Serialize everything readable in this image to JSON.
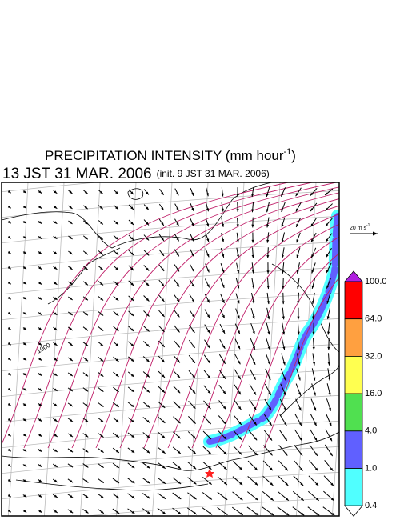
{
  "title": {
    "text": "PRECIPITATION INTENSITY (mm hour",
    "exponent": "-1",
    "close": ")"
  },
  "time": {
    "valid": "13 JST 31 MAR. 2006",
    "init": "(init. 9 JST 31 MAR. 2006)"
  },
  "wind_reference": {
    "text": "20 m s",
    "exponent": "-1"
  },
  "isobar_label": "1000",
  "colorbar": {
    "labels": [
      "100.0",
      "64.0",
      "32.0",
      "16.0",
      "4.0",
      "1.0",
      "0.4"
    ],
    "colors": [
      "#ff0000",
      "#ffa040",
      "#ffff50",
      "#50e050",
      "#6060ff",
      "#50ffff"
    ],
    "over_color": "#b020e0",
    "under_color": "#ffffff"
  }
}
